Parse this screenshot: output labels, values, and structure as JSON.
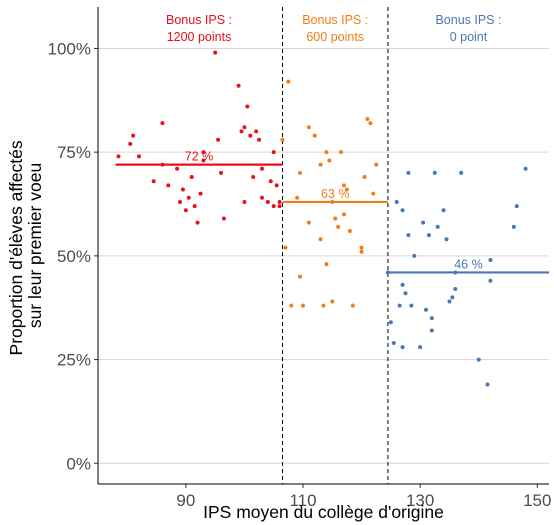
{
  "chart_data": {
    "type": "scatter",
    "xlabel": "IPS moyen du collège d'origine",
    "ylabel_lines": [
      "Proportion d'élèves affectés",
      "sur leur premier voeu"
    ],
    "xlim": [
      75,
      152
    ],
    "ylim": [
      -0.05,
      1.1
    ],
    "x_ticks": [
      {
        "value": 90,
        "label": "90"
      },
      {
        "value": 110,
        "label": "110"
      },
      {
        "value": 130,
        "label": "130"
      },
      {
        "value": 150,
        "label": "150"
      }
    ],
    "y_ticks": [
      {
        "value": 0,
        "label": "0%"
      },
      {
        "value": 0.25,
        "label": "25%"
      },
      {
        "value": 0.5,
        "label": "50%"
      },
      {
        "value": 0.75,
        "label": "75%"
      },
      {
        "value": 1,
        "label": "100%"
      }
    ],
    "grid": "horizontal",
    "thresholds": [
      106.5,
      124.5
    ],
    "groups": [
      {
        "label_lines": [
          "Bonus IPS :",
          "1200 points"
        ],
        "color": "#e8111b",
        "x_range": [
          78,
          106.5
        ],
        "mean": 0.72,
        "mean_label": "72 %",
        "points": [
          [
            78.5,
            0.74
          ],
          [
            81,
            0.79
          ],
          [
            82,
            0.74
          ],
          [
            80.5,
            0.77
          ],
          [
            84.5,
            0.68
          ],
          [
            86,
            0.82
          ],
          [
            86,
            0.72
          ],
          [
            87,
            0.67
          ],
          [
            88.5,
            0.71
          ],
          [
            89,
            0.63
          ],
          [
            89.5,
            0.66
          ],
          [
            90,
            0.61
          ],
          [
            90.5,
            0.64
          ],
          [
            91,
            0.69
          ],
          [
            91.5,
            0.62
          ],
          [
            92,
            0.58
          ],
          [
            92.5,
            0.65
          ],
          [
            93,
            0.75
          ],
          [
            93,
            0.73
          ],
          [
            95,
            0.99
          ],
          [
            95.5,
            0.78
          ],
          [
            96,
            0.7
          ],
          [
            96.5,
            0.59
          ],
          [
            99,
            0.91
          ],
          [
            99.5,
            0.8
          ],
          [
            100,
            0.81
          ],
          [
            100,
            0.63
          ],
          [
            100.5,
            0.86
          ],
          [
            101,
            0.79
          ],
          [
            101.5,
            0.69
          ],
          [
            102,
            0.8
          ],
          [
            102.5,
            0.78
          ],
          [
            103,
            0.71
          ],
          [
            103,
            0.64
          ],
          [
            104,
            0.63
          ],
          [
            104.5,
            0.68
          ],
          [
            105,
            0.75
          ],
          [
            105.5,
            0.67
          ],
          [
            105,
            0.62
          ],
          [
            106,
            0.63
          ],
          [
            106,
            0.62
          ]
        ]
      },
      {
        "label_lines": [
          "Bonus IPS :",
          "600 points"
        ],
        "color": "#f07e16",
        "x_range": [
          106.5,
          124.5
        ],
        "mean": 0.63,
        "mean_label": "63 %",
        "points": [
          [
            106.5,
            0.78
          ],
          [
            107,
            0.52
          ],
          [
            107.5,
            0.92
          ],
          [
            108,
            0.38
          ],
          [
            109,
            0.64
          ],
          [
            109.5,
            0.7
          ],
          [
            109.5,
            0.45
          ],
          [
            110,
            0.38
          ],
          [
            111,
            0.81
          ],
          [
            111,
            0.58
          ],
          [
            112,
            0.79
          ],
          [
            113,
            0.72
          ],
          [
            113,
            0.54
          ],
          [
            113.5,
            0.38
          ],
          [
            114,
            0.75
          ],
          [
            114,
            0.48
          ],
          [
            114.5,
            0.73
          ],
          [
            115,
            0.39
          ],
          [
            115,
            0.63
          ],
          [
            115.5,
            0.59
          ],
          [
            116,
            0.57
          ],
          [
            116.5,
            0.75
          ],
          [
            117,
            0.67
          ],
          [
            117,
            0.6
          ],
          [
            117.5,
            0.66
          ],
          [
            118,
            0.56
          ],
          [
            118.5,
            0.38
          ],
          [
            120,
            0.52
          ],
          [
            120,
            0.51
          ],
          [
            120.5,
            0.69
          ],
          [
            121,
            0.83
          ],
          [
            121.5,
            0.82
          ],
          [
            122,
            0.65
          ],
          [
            122.5,
            0.72
          ]
        ]
      },
      {
        "label_lines": [
          "Bonus IPS :",
          "0 point"
        ],
        "color": "#4a78b4",
        "x_range": [
          124.5,
          152
        ],
        "mean": 0.46,
        "mean_label": "46 %",
        "points": [
          [
            124.5,
            0.46
          ],
          [
            125,
            0.34
          ],
          [
            125.5,
            0.29
          ],
          [
            126,
            0.63
          ],
          [
            126.5,
            0.38
          ],
          [
            127,
            0.61
          ],
          [
            127,
            0.43
          ],
          [
            127,
            0.28
          ],
          [
            127.5,
            0.41
          ],
          [
            128,
            0.7
          ],
          [
            128,
            0.55
          ],
          [
            128.5,
            0.38
          ],
          [
            129,
            0.5
          ],
          [
            130,
            0.28
          ],
          [
            130.5,
            0.58
          ],
          [
            131,
            0.37
          ],
          [
            131.5,
            0.55
          ],
          [
            132,
            0.32
          ],
          [
            132,
            0.35
          ],
          [
            132.5,
            0.7
          ],
          [
            133,
            0.57
          ],
          [
            134,
            0.61
          ],
          [
            134.5,
            0.54
          ],
          [
            135,
            0.39
          ],
          [
            135.5,
            0.4
          ],
          [
            136,
            0.42
          ],
          [
            136,
            0.46
          ],
          [
            137,
            0.7
          ],
          [
            140,
            0.25
          ],
          [
            141.5,
            0.19
          ],
          [
            142,
            0.49
          ],
          [
            142,
            0.44
          ],
          [
            146,
            0.57
          ],
          [
            146.5,
            0.62
          ],
          [
            148,
            0.71
          ]
        ]
      }
    ]
  }
}
